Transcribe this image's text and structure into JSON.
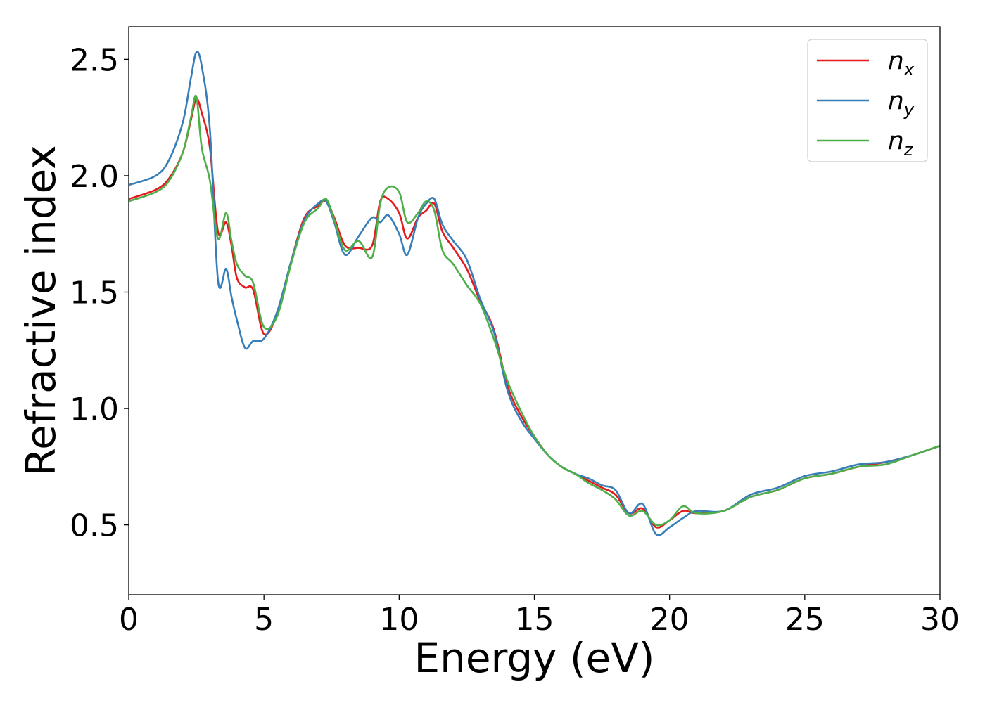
{
  "chart_data": {
    "type": "line",
    "title": "",
    "xlabel": "Energy (eV)",
    "ylabel": "Refractive index",
    "xlim": [
      0,
      30
    ],
    "ylim": [
      0.2,
      2.64
    ],
    "x_ticks": [
      0,
      5,
      10,
      15,
      20,
      25,
      30
    ],
    "y_ticks": [
      0.5,
      1.0,
      1.5,
      2.0,
      2.5
    ],
    "x_tick_labels": [
      "0",
      "5",
      "10",
      "15",
      "20",
      "25",
      "30"
    ],
    "y_tick_labels": [
      "0.5",
      "1.0",
      "1.5",
      "2.0",
      "2.5"
    ],
    "grid": false,
    "legend_position": "top-right",
    "series": [
      {
        "name": "n_x",
        "legend_base": "n",
        "legend_sub": "x",
        "color": "#e41a1c",
        "x": [
          0,
          1,
          1.5,
          2.0,
          2.3,
          2.5,
          2.7,
          3.0,
          3.3,
          3.6,
          3.8,
          4.0,
          4.3,
          4.6,
          5.0,
          5.5,
          6.0,
          6.5,
          7.0,
          7.3,
          7.6,
          8.0,
          8.5,
          9.0,
          9.3,
          9.6,
          10.0,
          10.3,
          10.7,
          11.0,
          11.3,
          11.6,
          12.0,
          12.5,
          13.0,
          13.5,
          14.0,
          14.5,
          15.0,
          15.5,
          16.0,
          16.5,
          17.0,
          17.5,
          18.0,
          18.5,
          19.0,
          19.5,
          20.0,
          20.5,
          21.0,
          22.0,
          23.0,
          24.0,
          25.0,
          26.0,
          27.0,
          28.0,
          29.0,
          30.0
        ],
        "y": [
          1.9,
          1.94,
          1.99,
          2.1,
          2.24,
          2.33,
          2.27,
          2.12,
          1.76,
          1.8,
          1.7,
          1.56,
          1.52,
          1.51,
          1.32,
          1.41,
          1.63,
          1.82,
          1.87,
          1.89,
          1.82,
          1.7,
          1.69,
          1.7,
          1.89,
          1.9,
          1.84,
          1.73,
          1.82,
          1.85,
          1.88,
          1.76,
          1.69,
          1.6,
          1.46,
          1.34,
          1.1,
          0.97,
          0.88,
          0.8,
          0.75,
          0.72,
          0.69,
          0.66,
          0.63,
          0.55,
          0.57,
          0.49,
          0.52,
          0.56,
          0.55,
          0.56,
          0.62,
          0.65,
          0.7,
          0.72,
          0.75,
          0.77,
          0.8,
          0.84
        ]
      },
      {
        "name": "n_y",
        "legend_base": "n",
        "legend_sub": "y",
        "color": "#377eb8",
        "x": [
          0,
          1,
          1.5,
          2.0,
          2.3,
          2.5,
          2.7,
          3.0,
          3.3,
          3.6,
          3.8,
          4.0,
          4.3,
          4.6,
          5.0,
          5.5,
          6.0,
          6.5,
          7.0,
          7.3,
          7.6,
          8.0,
          8.5,
          9.0,
          9.3,
          9.6,
          10.0,
          10.3,
          10.7,
          11.0,
          11.3,
          11.6,
          12.0,
          12.5,
          13.0,
          13.5,
          14.0,
          14.5,
          15.0,
          15.5,
          16.0,
          16.5,
          17.0,
          17.5,
          18.0,
          18.5,
          19.0,
          19.5,
          20.0,
          20.5,
          21.0,
          22.0,
          23.0,
          24.0,
          25.0,
          26.0,
          27.0,
          28.0,
          29.0,
          30.0
        ],
        "y": [
          1.96,
          2.0,
          2.07,
          2.23,
          2.42,
          2.53,
          2.47,
          2.2,
          1.55,
          1.6,
          1.48,
          1.38,
          1.26,
          1.29,
          1.3,
          1.42,
          1.63,
          1.81,
          1.88,
          1.89,
          1.8,
          1.66,
          1.74,
          1.82,
          1.8,
          1.83,
          1.75,
          1.66,
          1.82,
          1.88,
          1.9,
          1.79,
          1.72,
          1.64,
          1.47,
          1.33,
          1.08,
          0.95,
          0.87,
          0.8,
          0.75,
          0.72,
          0.7,
          0.67,
          0.65,
          0.55,
          0.59,
          0.46,
          0.49,
          0.53,
          0.56,
          0.56,
          0.63,
          0.66,
          0.71,
          0.73,
          0.76,
          0.77,
          0.8,
          0.84
        ]
      },
      {
        "name": "n_z",
        "legend_base": "n",
        "legend_sub": "z",
        "color": "#4daf4a",
        "x": [
          0,
          1,
          1.5,
          2.0,
          2.3,
          2.5,
          2.7,
          3.0,
          3.3,
          3.6,
          3.8,
          4.0,
          4.3,
          4.6,
          5.0,
          5.5,
          6.0,
          6.5,
          7.0,
          7.3,
          7.6,
          8.0,
          8.5,
          9.0,
          9.3,
          9.6,
          10.0,
          10.3,
          10.7,
          11.0,
          11.3,
          11.6,
          12.0,
          12.5,
          13.0,
          13.5,
          14.0,
          14.5,
          15.0,
          15.5,
          16.0,
          16.5,
          17.0,
          17.5,
          18.0,
          18.5,
          19.0,
          19.5,
          20.0,
          20.5,
          21.0,
          22.0,
          23.0,
          24.0,
          25.0,
          26.0,
          27.0,
          28.0,
          29.0,
          30.0
        ],
        "y": [
          1.89,
          1.93,
          1.98,
          2.1,
          2.25,
          2.34,
          2.12,
          1.98,
          1.73,
          1.84,
          1.72,
          1.62,
          1.57,
          1.54,
          1.35,
          1.4,
          1.62,
          1.8,
          1.86,
          1.9,
          1.81,
          1.68,
          1.72,
          1.65,
          1.88,
          1.95,
          1.93,
          1.8,
          1.84,
          1.89,
          1.85,
          1.68,
          1.62,
          1.53,
          1.45,
          1.3,
          1.12,
          0.99,
          0.88,
          0.8,
          0.75,
          0.72,
          0.68,
          0.65,
          0.61,
          0.54,
          0.56,
          0.5,
          0.52,
          0.58,
          0.55,
          0.56,
          0.62,
          0.65,
          0.7,
          0.72,
          0.75,
          0.76,
          0.8,
          0.84
        ]
      }
    ]
  }
}
